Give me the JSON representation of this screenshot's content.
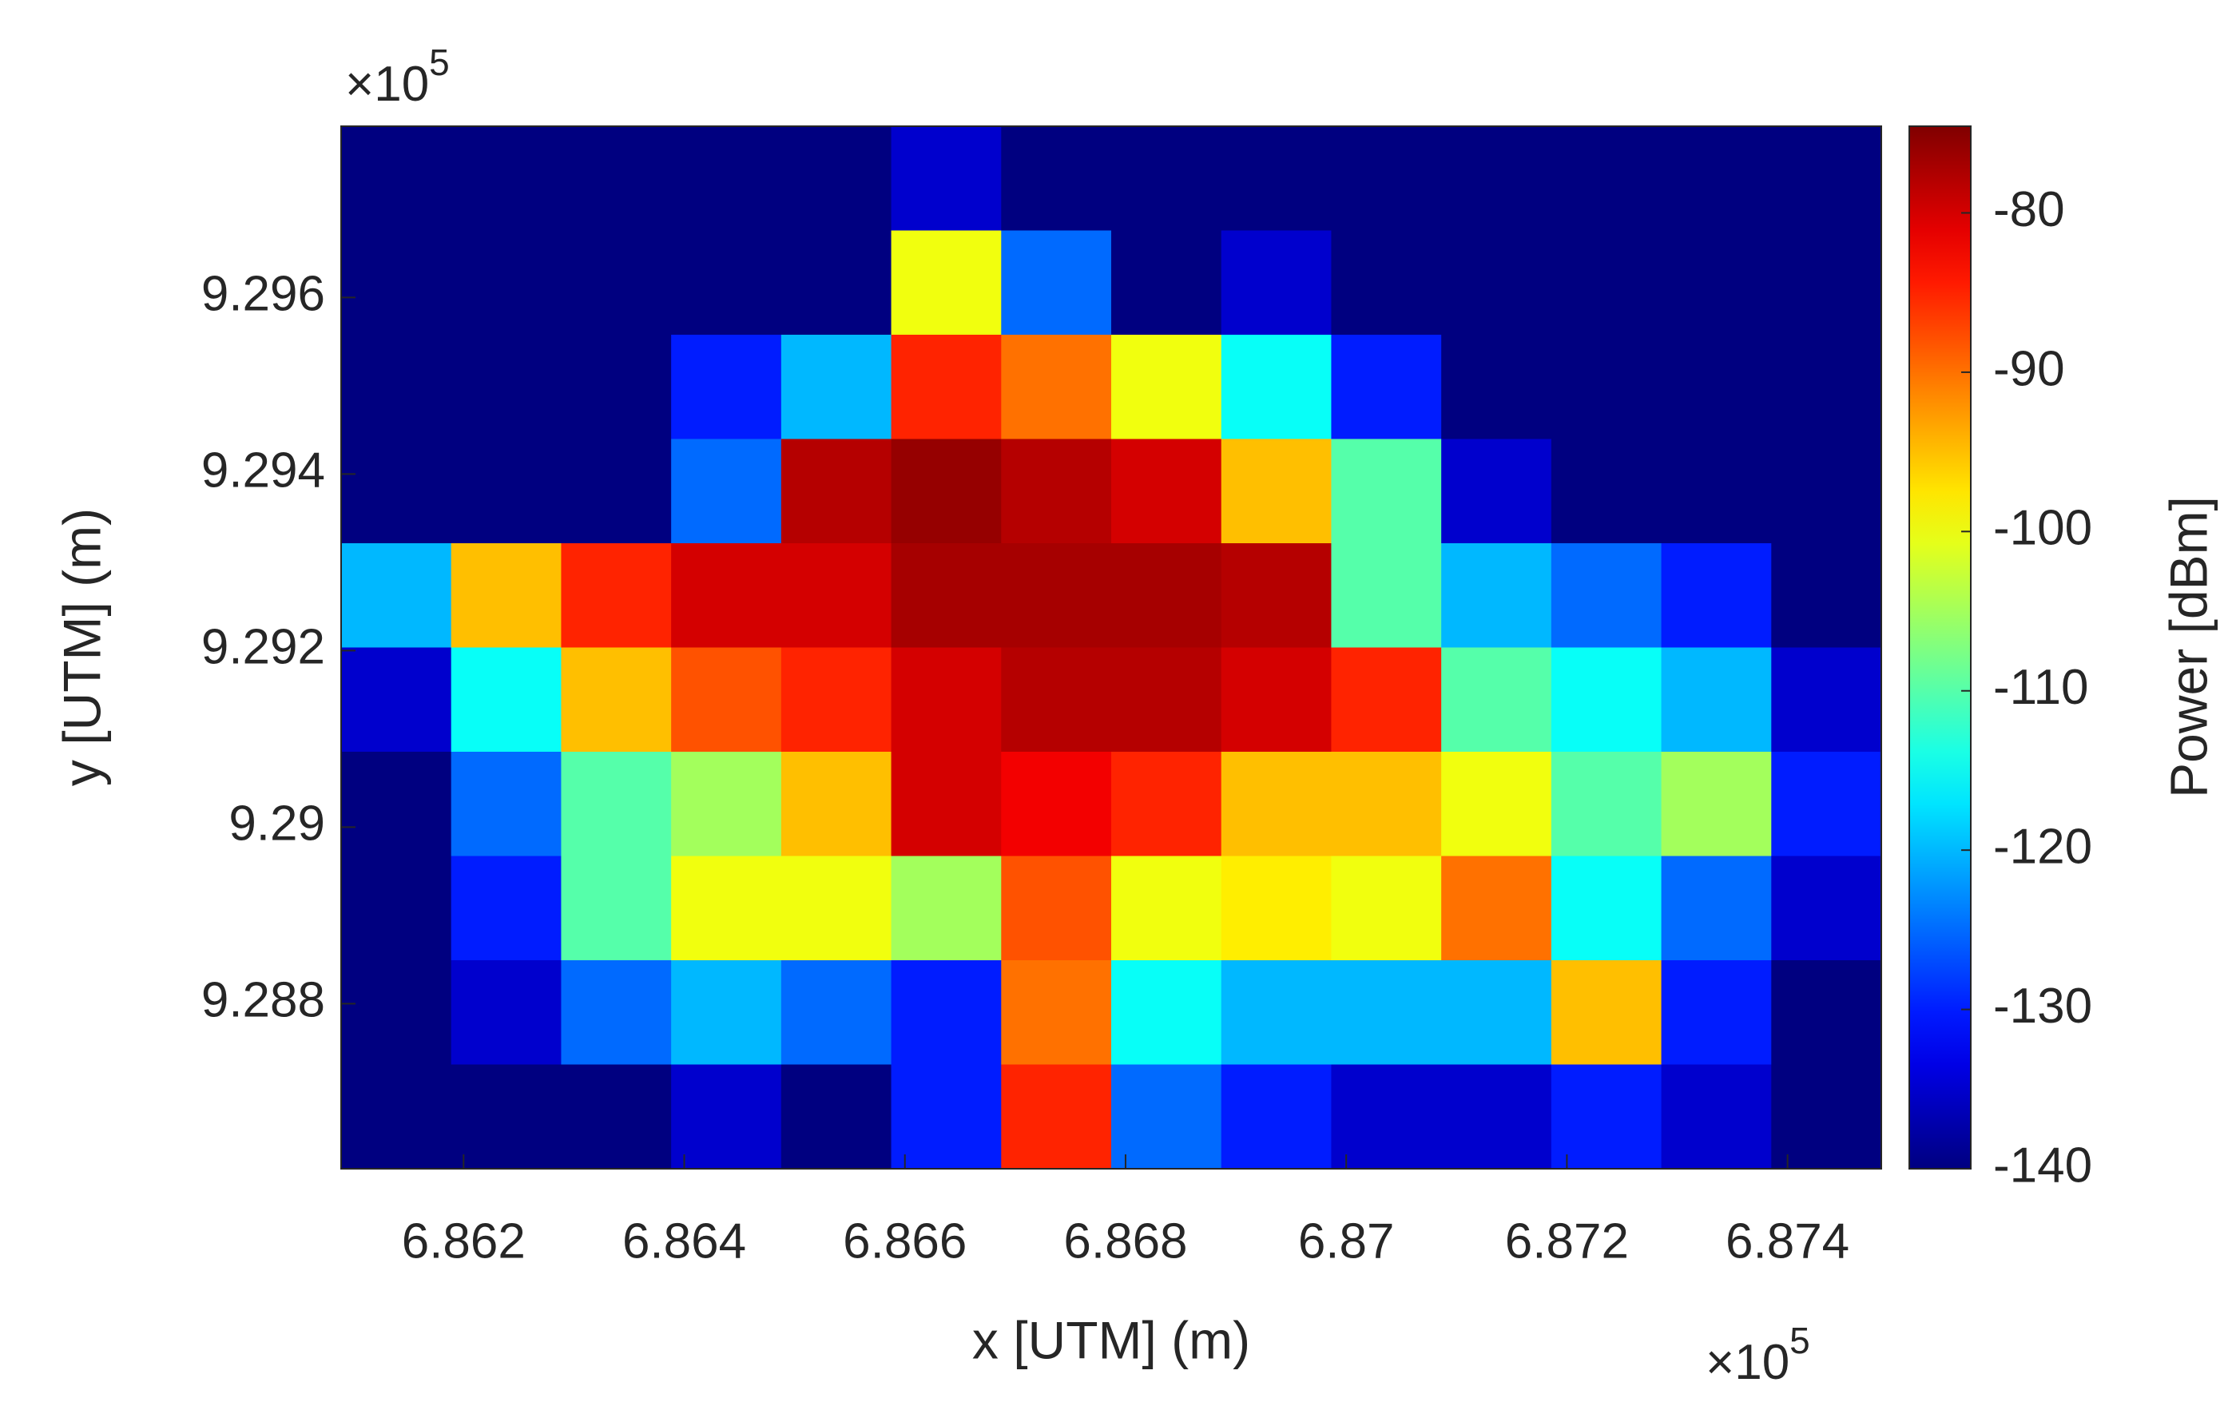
{
  "chart_data": {
    "type": "heatmap",
    "xlabel": "x [UTM] (m)",
    "ylabel": "y [UTM] (m)",
    "x_multiplier": {
      "base": "×10",
      "exponent": "5"
    },
    "y_multiplier": {
      "base": "×10",
      "exponent": "5"
    },
    "xlim": [
      6.86089,
      6.87485
    ],
    "ylim": [
      9.28613,
      9.29794
    ],
    "xticks": [
      6.862,
      6.864,
      6.866,
      6.868,
      6.87,
      6.872,
      6.874
    ],
    "yticks": [
      9.288,
      9.29,
      9.292,
      9.294,
      9.296
    ],
    "z": [
      [
        -140,
        -140,
        -140,
        -140,
        -140,
        -135,
        -140,
        -140,
        -140,
        -140,
        -140,
        -140,
        -140,
        -140
      ],
      [
        -140,
        -140,
        -140,
        -140,
        -140,
        -100,
        -125,
        -140,
        -135,
        -140,
        -140,
        -140,
        -140,
        -140
      ],
      [
        -140,
        -140,
        -140,
        -130,
        -120,
        -85,
        -90,
        -100,
        -115,
        -130,
        -140,
        -140,
        -140,
        -140
      ],
      [
        -140,
        -140,
        -140,
        -125,
        -78,
        -76,
        -78,
        -80,
        -95,
        -110,
        -135,
        -140,
        -140,
        -140
      ],
      [
        -120,
        -95,
        -85,
        -80,
        -80,
        -77,
        -77,
        -77,
        -78,
        -110,
        -120,
        -125,
        -130,
        -140
      ],
      [
        -135,
        -115,
        -95,
        -88,
        -85,
        -80,
        -78,
        -78,
        -80,
        -85,
        -110,
        -115,
        -120,
        -135
      ],
      [
        -140,
        -125,
        -110,
        -105,
        -95,
        -80,
        -82,
        -85,
        -95,
        -95,
        -100,
        -110,
        -105,
        -130
      ],
      [
        -140,
        -130,
        -110,
        -100,
        -100,
        -105,
        -88,
        -100,
        -98,
        -100,
        -90,
        -115,
        -125,
        -135
      ],
      [
        -140,
        -135,
        -125,
        -120,
        -125,
        -130,
        -90,
        -115,
        -120,
        -120,
        -120,
        -95,
        -130,
        -140
      ],
      [
        -140,
        -140,
        -140,
        -135,
        -140,
        -130,
        -85,
        -125,
        -130,
        -135,
        -135,
        -130,
        -135,
        -140
      ]
    ],
    "colormap": "jet",
    "clim": [
      -140,
      -74.56
    ],
    "colorbar_label": "Power [dBm]",
    "colorbar_ticks": [
      -140,
      -130,
      -120,
      -110,
      -100,
      -90,
      -80
    ]
  }
}
